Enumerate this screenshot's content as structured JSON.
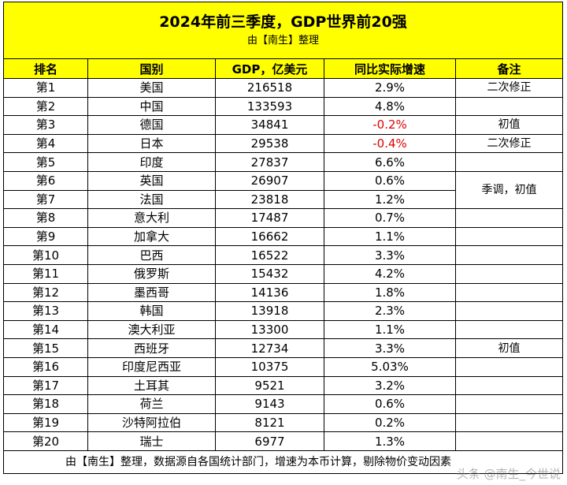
{
  "title": "2024年前三季度，GDP世界前20强",
  "subtitle": "由【南生】整理",
  "headers": [
    "排名",
    "国别",
    "GDP，亿美元",
    "同比实际增速",
    "备注"
  ],
  "rows": [
    {
      "rank": "第1",
      "country": "美国",
      "gdp": "216518",
      "growth": "2.9%",
      "negative": false
    },
    {
      "rank": "第2",
      "country": "中国",
      "gdp": "133593",
      "growth": "4.8%",
      "negative": false
    },
    {
      "rank": "第3",
      "country": "德国",
      "gdp": "34841",
      "growth": "-0.2%",
      "negative": true
    },
    {
      "rank": "第4",
      "country": "日本",
      "gdp": "29538",
      "growth": "-0.4%",
      "negative": true
    },
    {
      "rank": "第5",
      "country": "印度",
      "gdp": "27837",
      "growth": "6.6%",
      "negative": false
    },
    {
      "rank": "第6",
      "country": "英国",
      "gdp": "26907",
      "growth": "0.6%",
      "negative": false
    },
    {
      "rank": "第7",
      "country": "法国",
      "gdp": "23818",
      "growth": "1.2%",
      "negative": false
    },
    {
      "rank": "第8",
      "country": "意大利",
      "gdp": "17487",
      "growth": "0.7%",
      "negative": false
    },
    {
      "rank": "第9",
      "country": "加拿大",
      "gdp": "16662",
      "growth": "1.1%",
      "negative": false
    },
    {
      "rank": "第10",
      "country": "巴西",
      "gdp": "16522",
      "growth": "3.3%",
      "negative": false
    },
    {
      "rank": "第11",
      "country": "俄罗斯",
      "gdp": "15432",
      "growth": "4.2%",
      "negative": false
    },
    {
      "rank": "第12",
      "country": "墨西哥",
      "gdp": "14136",
      "growth": "1.8%",
      "negative": false
    },
    {
      "rank": "第13",
      "country": "韩国",
      "gdp": "13918",
      "growth": "2.3%",
      "negative": false
    },
    {
      "rank": "第14",
      "country": "澳大利亚",
      "gdp": "13300",
      "growth": "1.1%",
      "negative": false
    },
    {
      "rank": "第15",
      "country": "西班牙",
      "gdp": "12734",
      "growth": "3.3%",
      "negative": false
    },
    {
      "rank": "第16",
      "country": "印度尼西亚",
      "gdp": "10375",
      "growth": "5.03%",
      "negative": false
    },
    {
      "rank": "第17",
      "country": "土耳其",
      "gdp": "9521",
      "growth": "3.2%",
      "negative": false
    },
    {
      "rank": "第18",
      "country": "荷兰",
      "gdp": "9143",
      "growth": "0.6%",
      "negative": false
    },
    {
      "rank": "第19",
      "country": "沙特阿拉伯",
      "gdp": "8121",
      "growth": "0.2%",
      "negative": false
    },
    {
      "rank": "第20",
      "country": "瑞士",
      "gdp": "6977",
      "growth": "1.3%",
      "negative": false
    }
  ],
  "notes": [
    {
      "start": 0,
      "span": 1,
      "text": "二次修正"
    },
    {
      "start": 1,
      "span": 1,
      "text": ""
    },
    {
      "start": 2,
      "span": 1,
      "text": "初值"
    },
    {
      "start": 3,
      "span": 1,
      "text": "二次修正"
    },
    {
      "start": 4,
      "span": 1,
      "text": ""
    },
    {
      "start": 5,
      "span": 2,
      "text": "季调，初值"
    },
    {
      "start": 7,
      "span": 1,
      "text": ""
    },
    {
      "start": 8,
      "span": 1,
      "text": ""
    },
    {
      "start": 9,
      "span": 1,
      "text": ""
    },
    {
      "start": 10,
      "span": 1,
      "text": ""
    },
    {
      "start": 11,
      "span": 1,
      "text": ""
    },
    {
      "start": 12,
      "span": 1,
      "text": ""
    },
    {
      "start": 13,
      "span": 1,
      "text": ""
    },
    {
      "start": 14,
      "span": 1,
      "text": "初值"
    },
    {
      "start": 15,
      "span": 1,
      "text": ""
    },
    {
      "start": 16,
      "span": 1,
      "text": ""
    },
    {
      "start": 17,
      "span": 1,
      "text": ""
    },
    {
      "start": 18,
      "span": 1,
      "text": ""
    },
    {
      "start": 19,
      "span": 1,
      "text": ""
    }
  ],
  "footer": "由【南生】整理，数据源自各国统计部门，增速为本币计算，剔除物价变动因素",
  "watermark": "头条 @南生_今世说",
  "colors": {
    "header_bg": "#ffff00",
    "negative_text": "#e00000"
  }
}
